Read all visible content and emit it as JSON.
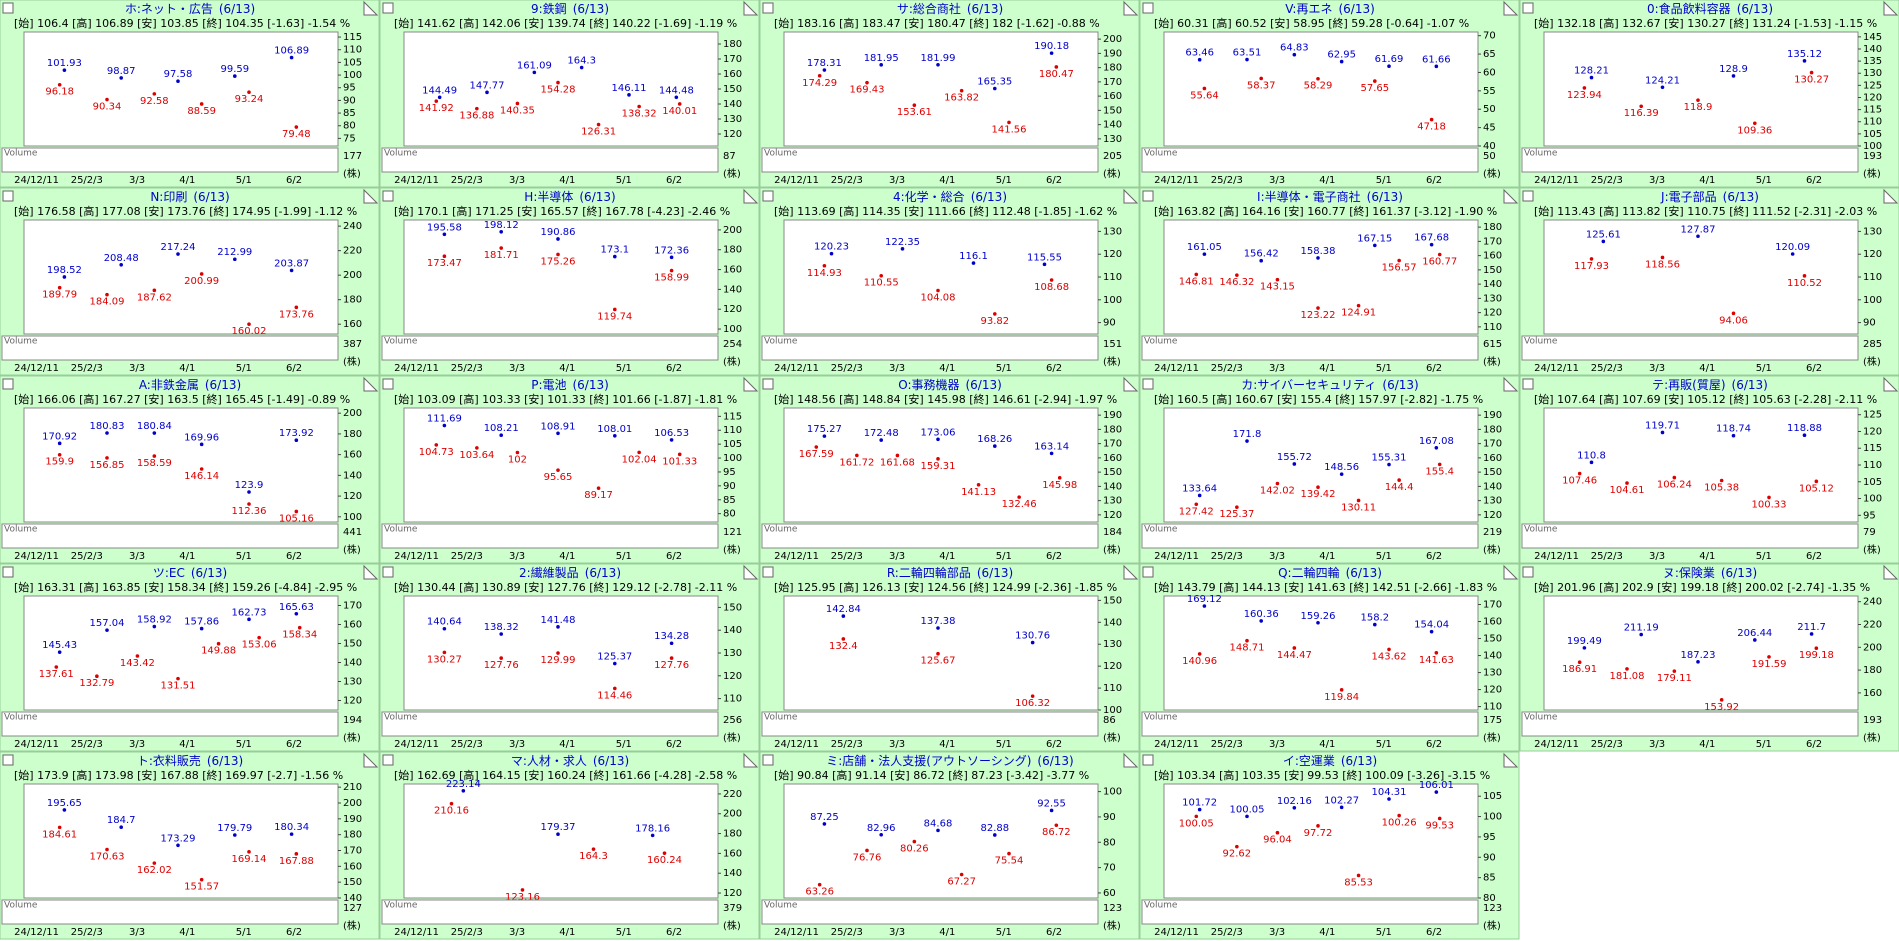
{
  "x_labels": [
    "24/12/11",
    "25/2/3",
    "3/3",
    "4/1",
    "5/1",
    "6/2"
  ],
  "volume_label": "Volume",
  "volume_unit": "(株)",
  "date": "(6/13)",
  "panels": [
    {
      "type": "candlestick",
      "title": "ホ:ネット・広告",
      "ohlc": "[始] 106.4 [高] 106.89 [安] 103.85 [終] 104.35 [-1.63] -1.54 %",
      "ylim": [
        72,
        117
      ],
      "yticks": [
        115,
        110,
        105,
        100,
        95,
        90,
        85,
        80,
        75
      ],
      "highs": [
        101.93,
        98.87,
        97.58,
        99.59,
        106.89
      ],
      "lows": [
        96.18,
        90.34,
        92.58,
        88.59,
        93.24,
        79.48
      ],
      "volume_max": 177
    },
    {
      "type": "candlestick",
      "title": "9:鉄鋼",
      "ohlc": "[始] 141.62 [高] 142.06 [安] 139.74 [終] 140.22 [-1.69] -1.19 %",
      "ylim": [
        112,
        188
      ],
      "yticks": [
        180,
        170,
        160,
        150,
        140,
        130,
        120
      ],
      "highs": [
        144.49,
        147.77,
        161.09,
        164.3,
        146.11,
        144.48
      ],
      "lows": [
        141.92,
        136.88,
        140.35,
        154.28,
        126.31,
        138.32,
        140.01
      ],
      "volume_max": 87
    },
    {
      "type": "candlestick",
      "title": "サ:総合商社",
      "ohlc": "[始] 183.16 [高] 183.47 [安] 180.47 [終] 182 [-1.62] -0.88 %",
      "ylim": [
        125,
        205
      ],
      "yticks": [
        200,
        190,
        180,
        170,
        160,
        150,
        140,
        130
      ],
      "highs": [
        178.31,
        181.95,
        181.99,
        165.35,
        190.18
      ],
      "lows": [
        174.29,
        169.43,
        153.61,
        163.82,
        141.56,
        180.47
      ],
      "volume_max": 205
    },
    {
      "type": "candlestick",
      "title": "V:再エネ",
      "ohlc": "[始] 60.31 [高] 60.52 [安] 58.95 [終] 59.28 [-0.64] -1.07 %",
      "ylim": [
        40,
        71
      ],
      "yticks": [
        70,
        65,
        60,
        55,
        50,
        45,
        40
      ],
      "highs": [
        63.46,
        63.51,
        64.83,
        62.95,
        61.69,
        61.66
      ],
      "lows": [
        55.64,
        58.37,
        58.29,
        57.65,
        47.18
      ],
      "volume_max": 50
    },
    {
      "type": "candlestick",
      "title": "0:食品飲料容器",
      "ohlc": "[始] 132.18 [高] 132.67 [安] 130.27 [終] 131.24 [-1.53] -1.15 %",
      "ylim": [
        100,
        147
      ],
      "yticks": [
        145,
        140,
        135,
        130,
        125,
        120,
        115,
        110,
        105,
        100
      ],
      "highs": [
        128.21,
        124.21,
        128.9,
        135.12
      ],
      "lows": [
        123.94,
        116.39,
        118.9,
        109.36,
        130.27
      ],
      "volume_max": 193
    },
    {
      "type": "candlestick",
      "title": "N:印刷",
      "ohlc": "[始] 176.58 [高] 177.08 [安] 173.76 [終] 174.95 [-1.99] -1.12 %",
      "ylim": [
        152,
        245
      ],
      "yticks": [
        240,
        220,
        200,
        180,
        160
      ],
      "highs": [
        198.52,
        208.48,
        217.24,
        212.99,
        203.87
      ],
      "lows": [
        189.79,
        184.09,
        187.62,
        200.99,
        160.02,
        173.76
      ],
      "volume_max": 387
    },
    {
      "type": "candlestick",
      "title": "H:半導体",
      "ohlc": "[始] 170.1 [高] 171.25 [安] 165.57 [終] 167.78 [-4.23] -2.46 %",
      "ylim": [
        95,
        210
      ],
      "yticks": [
        200,
        180,
        160,
        140,
        120,
        100
      ],
      "highs": [
        195.58,
        198.12,
        190.86,
        173.1,
        172.36
      ],
      "lows": [
        173.47,
        181.71,
        175.26,
        119.74,
        158.99
      ],
      "volume_max": 254
    },
    {
      "type": "candlestick",
      "title": "4:化学・総合",
      "ohlc": "[始] 113.69 [高] 114.35 [安] 111.66 [終] 112.48 [-1.85] -1.62 %",
      "ylim": [
        85,
        135
      ],
      "yticks": [
        130,
        120,
        110,
        100,
        90
      ],
      "highs": [
        120.23,
        122.35,
        116.1,
        115.55
      ],
      "lows": [
        114.93,
        110.55,
        104.08,
        93.82,
        108.68
      ],
      "volume_max": 151
    },
    {
      "type": "candlestick",
      "title": "I:半導体・電子商社",
      "ohlc": "[始] 163.82 [高] 164.16 [安] 160.77 [終] 161.37 [-3.12] -1.90 %",
      "ylim": [
        105,
        185
      ],
      "yticks": [
        180,
        170,
        160,
        150,
        140,
        130,
        120,
        110
      ],
      "highs": [
        161.05,
        156.42,
        158.38,
        167.15,
        167.68
      ],
      "lows": [
        146.81,
        146.32,
        143.15,
        123.22,
        124.91,
        156.57,
        160.77
      ],
      "volume_max": 615
    },
    {
      "type": "candlestick",
      "title": "J:電子部品",
      "ohlc": "[始] 113.43 [高] 113.82 [安] 110.75 [終] 111.52 [-2.31] -2.03 %",
      "ylim": [
        85,
        135
      ],
      "yticks": [
        130,
        120,
        110,
        100,
        90
      ],
      "highs": [
        125.61,
        127.87,
        120.09
      ],
      "lows": [
        117.93,
        118.56,
        94.06,
        110.52
      ],
      "volume_max": 285
    },
    {
      "type": "candlestick",
      "title": "A:非鉄金属",
      "ohlc": "[始] 166.06 [高] 167.27 [安] 163.5 [終] 165.45 [-1.49] -0.89 %",
      "ylim": [
        95,
        205
      ],
      "yticks": [
        200,
        180,
        160,
        140,
        120,
        100
      ],
      "highs": [
        170.92,
        180.83,
        180.84,
        169.96,
        123.9,
        173.92
      ],
      "lows": [
        159.9,
        156.85,
        158.59,
        146.14,
        112.36,
        105.16
      ],
      "volume_max": 441
    },
    {
      "type": "candlestick",
      "title": "P:電池",
      "ohlc": "[始] 103.09 [高] 103.33 [安] 101.33 [終] 101.66 [-1.87] -1.81 %",
      "ylim": [
        77,
        118
      ],
      "yticks": [
        115,
        110,
        105,
        100,
        95,
        90,
        85,
        80
      ],
      "highs": [
        111.69,
        108.21,
        108.91,
        108.01,
        106.53
      ],
      "lows": [
        104.73,
        103.64,
        102,
        95.65,
        89.17,
        102.04,
        101.33
      ],
      "volume_max": 121
    },
    {
      "type": "candlestick",
      "title": "O:事務機器",
      "ohlc": "[始] 148.56 [高] 148.84 [安] 145.98 [終] 146.61 [-2.94] -1.97 %",
      "ylim": [
        115,
        195
      ],
      "yticks": [
        190,
        180,
        170,
        160,
        150,
        140,
        130,
        120
      ],
      "highs": [
        175.27,
        172.48,
        173.06,
        168.26,
        163.14
      ],
      "lows": [
        167.59,
        161.72,
        161.68,
        159.31,
        141.13,
        132.46,
        145.98
      ],
      "volume_max": 184
    },
    {
      "type": "candlestick",
      "title": "カ:サイバーセキュリティ",
      "ohlc": "[始] 160.5 [高] 160.67 [安] 155.4 [終] 157.97 [-2.82] -1.75 %",
      "ylim": [
        115,
        195
      ],
      "yticks": [
        190,
        180,
        170,
        160,
        150,
        140,
        130,
        120
      ],
      "highs": [
        133.64,
        171.8,
        155.72,
        148.56,
        155.31,
        167.08
      ],
      "lows": [
        127.42,
        125.37,
        142.02,
        139.42,
        130.11,
        144.4,
        155.4
      ],
      "volume_max": 219
    },
    {
      "type": "candlestick",
      "title": "テ:再販(質屋)",
      "ohlc": "[始] 107.64 [高] 107.69 [安] 105.12 [終] 105.63 [-2.28] -2.11 %",
      "ylim": [
        93,
        127
      ],
      "yticks": [
        125,
        120,
        115,
        110,
        105,
        100,
        95
      ],
      "highs": [
        110.8,
        119.71,
        118.74,
        118.88
      ],
      "lows": [
        107.46,
        104.61,
        106.24,
        105.38,
        100.33,
        105.12
      ],
      "volume_max": 79
    },
    {
      "type": "candlestick",
      "title": "ツ:EC",
      "ohlc": "[始] 163.31 [高] 163.85 [安] 158.34 [終] 159.26 [-4.84] -2.95 %",
      "ylim": [
        115,
        175
      ],
      "yticks": [
        170,
        160,
        150,
        140,
        130,
        120
      ],
      "highs": [
        145.43,
        157.04,
        158.92,
        157.86,
        162.73,
        165.63
      ],
      "lows": [
        137.61,
        132.79,
        143.42,
        131.51,
        149.88,
        153.06,
        158.34
      ],
      "volume_max": 194
    },
    {
      "type": "candlestick",
      "title": "2:繊維製品",
      "ohlc": "[始] 130.44 [高] 130.89 [安] 127.76 [終] 129.12 [-2.78] -2.11 %",
      "ylim": [
        105,
        155
      ],
      "yticks": [
        150,
        140,
        130,
        120,
        110
      ],
      "highs": [
        140.64,
        138.32,
        141.48,
        125.37,
        134.28
      ],
      "lows": [
        130.27,
        127.76,
        129.99,
        114.46,
        127.76
      ],
      "volume_max": 256
    },
    {
      "type": "candlestick",
      "title": "R:二輪四輪部品",
      "ohlc": "[始] 125.95 [高] 126.13 [安] 124.56 [終] 124.99 [-2.36] -1.85 %",
      "ylim": [
        100,
        152
      ],
      "yticks": [
        150,
        140,
        130,
        120,
        110,
        100
      ],
      "highs": [
        142.84,
        137.38,
        130.76
      ],
      "lows": [
        132.4,
        125.67,
        106.32
      ],
      "volume_max": 86
    },
    {
      "type": "candlestick",
      "title": "Q:二輪四輪",
      "ohlc": "[始] 143.79 [高] 144.13 [安] 141.63 [終] 142.51 [-2.66] -1.83 %",
      "ylim": [
        108,
        175
      ],
      "yticks": [
        170,
        160,
        150,
        140,
        130,
        120,
        110
      ],
      "highs": [
        169.12,
        160.36,
        159.26,
        158.2,
        154.04
      ],
      "lows": [
        140.96,
        148.71,
        144.47,
        119.84,
        143.62,
        141.63
      ],
      "volume_max": 175
    },
    {
      "type": "candlestick",
      "title": "ヌ:保険業",
      "ohlc": "[始] 201.96 [高] 202.9 [安] 199.18 [終] 200.02 [-2.74] -1.35 %",
      "ylim": [
        145,
        245
      ],
      "yticks": [
        240,
        220,
        200,
        180,
        160
      ],
      "highs": [
        199.49,
        211.19,
        187.23,
        206.44,
        211.7
      ],
      "lows": [
        186.91,
        181.08,
        179.11,
        153.92,
        191.59,
        199.18
      ],
      "volume_max": 193
    },
    {
      "type": "candlestick",
      "title": "ト:衣料販売",
      "ohlc": "[始] 173.9 [高] 173.98 [安] 167.88 [終] 169.97 [-2.7] -1.56 %",
      "ylim": [
        140,
        212
      ],
      "yticks": [
        210,
        200,
        190,
        180,
        170,
        160,
        150,
        140
      ],
      "highs": [
        195.65,
        184.7,
        173.29,
        179.79,
        180.34
      ],
      "lows": [
        184.61,
        170.63,
        162.02,
        151.57,
        169.14,
        167.88
      ],
      "volume_max": 127
    },
    {
      "type": "candlestick",
      "title": "マ:人材・求人",
      "ohlc": "[始] 162.69 [高] 164.15 [安] 160.24 [終] 161.66 [-4.28] -2.58 %",
      "ylim": [
        115,
        230
      ],
      "yticks": [
        220,
        200,
        180,
        160,
        140,
        120
      ],
      "highs": [
        223.14,
        179.37,
        178.16
      ],
      "lows": [
        210.16,
        123.16,
        164.3,
        160.24
      ],
      "volume_max": 379
    },
    {
      "type": "candlestick",
      "title": "ミ:店舗・法人支援(アウトソーシング)",
      "ohlc": "[始] 90.84 [高] 91.14 [安] 86.72 [終] 87.23 [-3.42] -3.77 %",
      "ylim": [
        58,
        103
      ],
      "yticks": [
        100,
        90,
        80,
        70,
        60
      ],
      "highs": [
        87.25,
        82.96,
        84.68,
        82.88,
        92.55
      ],
      "lows": [
        63.26,
        76.76,
        80.26,
        67.27,
        75.54,
        86.72
      ],
      "volume_max": 123
    },
    {
      "type": "candlestick",
      "title": "イ:空運業",
      "ohlc": "[始] 103.34 [高] 103.35 [安] 99.53 [終] 100.09 [-3.26] -3.15 %",
      "ylim": [
        80,
        108
      ],
      "yticks": [
        105,
        100,
        95,
        90,
        85,
        80
      ],
      "highs": [
        101.72,
        100.05,
        102.16,
        102.27,
        104.31,
        106.01
      ],
      "lows": [
        100.05,
        92.62,
        96.04,
        97.72,
        85.53,
        100.26,
        99.53
      ],
      "volume_max": 123
    }
  ]
}
